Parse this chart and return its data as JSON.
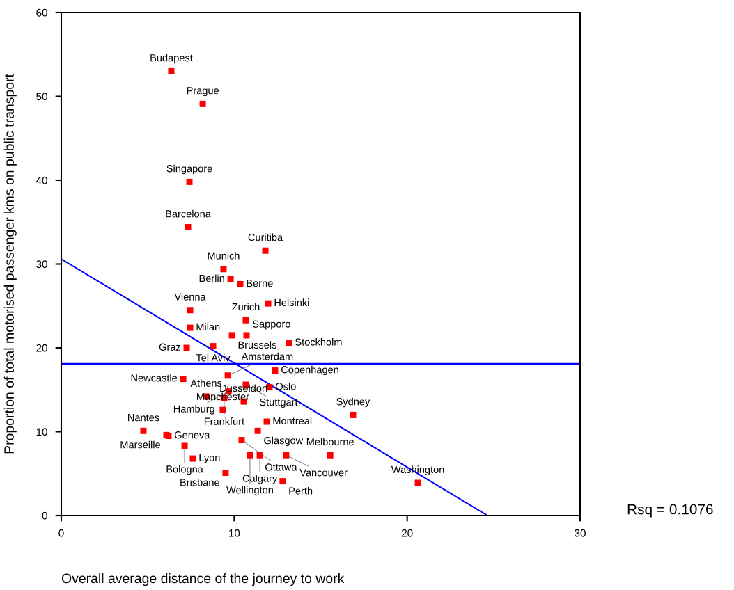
{
  "chart_data": {
    "type": "scatter",
    "xlabel": "Overall average distance of the journey to work",
    "ylabel": "Proportion of total motorised passenger kms on public transport",
    "xlim": [
      0,
      30
    ],
    "xticks": [
      0,
      10,
      20,
      30
    ],
    "ylim": [
      0,
      60
    ],
    "yticks": [
      0,
      10,
      20,
      30,
      40,
      50,
      60
    ],
    "grid": false,
    "legend": false,
    "marker": "square",
    "series": [
      {
        "color": "#ff0000",
        "x": [
          6.36,
          8.18,
          7.41,
          7.33,
          11.8,
          9.38,
          9.79,
          10.35,
          11.96,
          7.45,
          10.67,
          7.45,
          9.87,
          10.71,
          7.25,
          8.78,
          13.17,
          7.05,
          9.63,
          12.36,
          10.67,
          12.04,
          9.67,
          9.42,
          8.38,
          10.55,
          9.34,
          11.88,
          11.36,
          4.75,
          6.08,
          6.2,
          7.13,
          7.61,
          10.43,
          10.91,
          11.48,
          13.0,
          15.55,
          9.5,
          12.8,
          16.87,
          20.62
        ],
        "values": [
          53.0,
          49.1,
          39.8,
          34.4,
          31.6,
          29.4,
          28.2,
          27.6,
          25.3,
          24.5,
          23.3,
          22.4,
          21.5,
          21.5,
          20.0,
          20.2,
          20.6,
          16.3,
          16.7,
          17.3,
          15.6,
          15.3,
          14.8,
          14.0,
          14.2,
          13.6,
          12.6,
          11.2,
          10.1,
          10.1,
          9.6,
          9.5,
          8.3,
          6.8,
          9.0,
          7.2,
          7.2,
          7.2,
          7.2,
          5.1,
          4.1,
          12.0,
          3.9
        ]
      },
      {
        "type": "line",
        "color": "#0000ff",
        "line_style": "solid",
        "marker": "none",
        "x": [
          0,
          24.65
        ],
        "values": [
          30.6,
          0
        ]
      }
    ],
    "ref_lines": [
      {
        "axis": "y",
        "value": 18.1,
        "color": "#0000ff",
        "line_style": "solid"
      }
    ],
    "annotations": [
      {
        "text": "Budapest",
        "x": 6.36,
        "y": 53.0
      },
      {
        "text": "Prague",
        "x": 8.18,
        "y": 49.1
      },
      {
        "text": "Singapore",
        "x": 7.41,
        "y": 39.8
      },
      {
        "text": "Barcelona",
        "x": 7.33,
        "y": 34.4
      },
      {
        "text": "Curitiba",
        "x": 11.8,
        "y": 31.6
      },
      {
        "text": "Munich",
        "x": 9.38,
        "y": 29.4
      },
      {
        "text": "Berlin",
        "x": 9.79,
        "y": 28.2
      },
      {
        "text": "Berne",
        "x": 10.35,
        "y": 27.6
      },
      {
        "text": "Helsinki",
        "x": 11.96,
        "y": 25.3
      },
      {
        "text": "Vienna",
        "x": 7.45,
        "y": 24.5
      },
      {
        "text": "Zurich",
        "x": 10.67,
        "y": 23.3
      },
      {
        "text": "Milan",
        "x": 7.45,
        "y": 22.4
      },
      {
        "text": "Brussels",
        "x": 9.87,
        "y": 21.5
      },
      {
        "text": "Sapporo",
        "x": 10.71,
        "y": 21.5
      },
      {
        "text": "Graz",
        "x": 7.25,
        "y": 20.0
      },
      {
        "text": "Tel Aviv",
        "x": 8.78,
        "y": 20.2
      },
      {
        "text": "Stockholm",
        "x": 13.17,
        "y": 20.6
      },
      {
        "text": "Newcastle",
        "x": 7.05,
        "y": 16.3
      },
      {
        "text": "Amsterdam",
        "x": 9.63,
        "y": 16.7
      },
      {
        "text": "Copenhagen",
        "x": 12.36,
        "y": 17.3
      },
      {
        "text": "Stuttgart",
        "x": 10.67,
        "y": 15.6
      },
      {
        "text": "Oslo",
        "x": 12.04,
        "y": 15.3
      },
      {
        "text": "Hamburg",
        "x": 9.67,
        "y": 14.8
      },
      {
        "text": "Frankfurt",
        "x": 9.42,
        "y": 14.0
      },
      {
        "text": "Athens",
        "x": 8.38,
        "y": 14.2
      },
      {
        "text": "Dusseldorf",
        "x": 10.55,
        "y": 13.6
      },
      {
        "text": "Manchester",
        "x": 9.34,
        "y": 12.6
      },
      {
        "text": "Montreal",
        "x": 11.88,
        "y": 11.2
      },
      {
        "text": "Glasgow",
        "x": 11.36,
        "y": 10.1
      },
      {
        "text": "Nantes",
        "x": 4.75,
        "y": 10.1
      },
      {
        "text": "Marseille",
        "x": 6.08,
        "y": 9.6
      },
      {
        "text": "Geneva",
        "x": 6.2,
        "y": 9.5
      },
      {
        "text": "Bologna",
        "x": 7.13,
        "y": 8.3
      },
      {
        "text": "Lyon",
        "x": 7.61,
        "y": 6.8
      },
      {
        "text": "Ottawa",
        "x": 10.43,
        "y": 9.0
      },
      {
        "text": "Wellington",
        "x": 10.91,
        "y": 7.2
      },
      {
        "text": "Calgary",
        "x": 11.48,
        "y": 7.2
      },
      {
        "text": "Vancouver",
        "x": 13.0,
        "y": 7.2
      },
      {
        "text": "Melbourne",
        "x": 15.55,
        "y": 7.2
      },
      {
        "text": "Brisbane",
        "x": 9.5,
        "y": 5.1
      },
      {
        "text": "Perth",
        "x": 12.8,
        "y": 4.1
      },
      {
        "text": "Sydney",
        "x": 16.87,
        "y": 12.0
      },
      {
        "text": "Washington",
        "x": 20.62,
        "y": 3.9
      },
      "Rsq = 0.1076"
    ]
  }
}
